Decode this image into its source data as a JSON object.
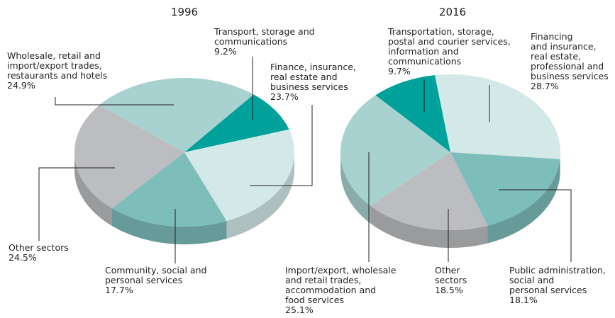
{
  "chart_data": [
    {
      "type": "pie",
      "title": "1996",
      "categories": [
        "Transport, storage and\ncommunications",
        "Finance, insurance,\nreal estate and\nbusiness services",
        "Community, social and\npersonal services",
        "Other sectors",
        "Wholesale, retail and\nimport/export trades,\nrestaurants and hotels"
      ],
      "values": [
        9.2,
        23.7,
        17.7,
        24.5,
        24.9
      ],
      "value_labels": [
        "9.2%",
        "23.7%",
        "17.7%",
        "24.5%",
        "24.9%"
      ],
      "colors": [
        "#00a19a",
        "#d3e9e8",
        "#7dbdba",
        "#bcbdc0",
        "#a8d2cf"
      ]
    },
    {
      "type": "pie",
      "title": "2016",
      "categories": [
        "Transportation, storage,\npostal and courier services,\ninformation and\ncommunications",
        "Financing\nand insurance,\nreal estate,\nprofessional and\nbusiness services",
        "Public administration,\nsocial and\npersonal services",
        "Other\nsectors",
        "Import/export, wholesale\nand retail trades,\naccommodation and\nfood services"
      ],
      "values": [
        9.7,
        28.7,
        18.1,
        18.5,
        25.1
      ],
      "value_labels": [
        "9.7%",
        "28.7%",
        "18.1%",
        "18.5%",
        "25.1%"
      ],
      "colors": [
        "#00a19a",
        "#d3e9e8",
        "#7dbdba",
        "#bcbdc0",
        "#a8d2cf"
      ]
    }
  ]
}
